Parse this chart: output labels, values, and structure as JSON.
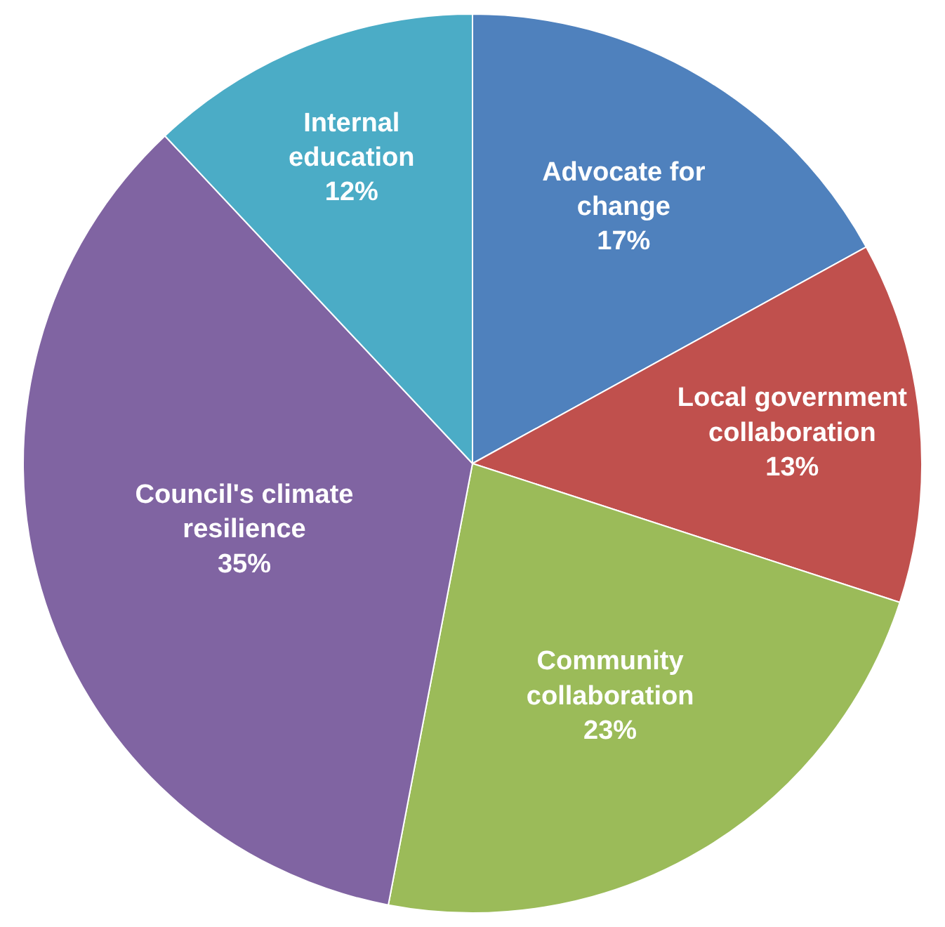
{
  "chart_data": {
    "type": "pie",
    "categories": [
      "Advocate for change",
      "Local government collaboration",
      "Community collaboration",
      "Council's climate resilience",
      "Internal education"
    ],
    "values": [
      17,
      13,
      23,
      35,
      12
    ],
    "value_labels": [
      "17%",
      "13%",
      "23%",
      "35%",
      "12%"
    ],
    "colors": [
      "#4f81bd",
      "#c0504d",
      "#9bbb59",
      "#8064a2",
      "#4bacc6"
    ],
    "legend": false
  }
}
